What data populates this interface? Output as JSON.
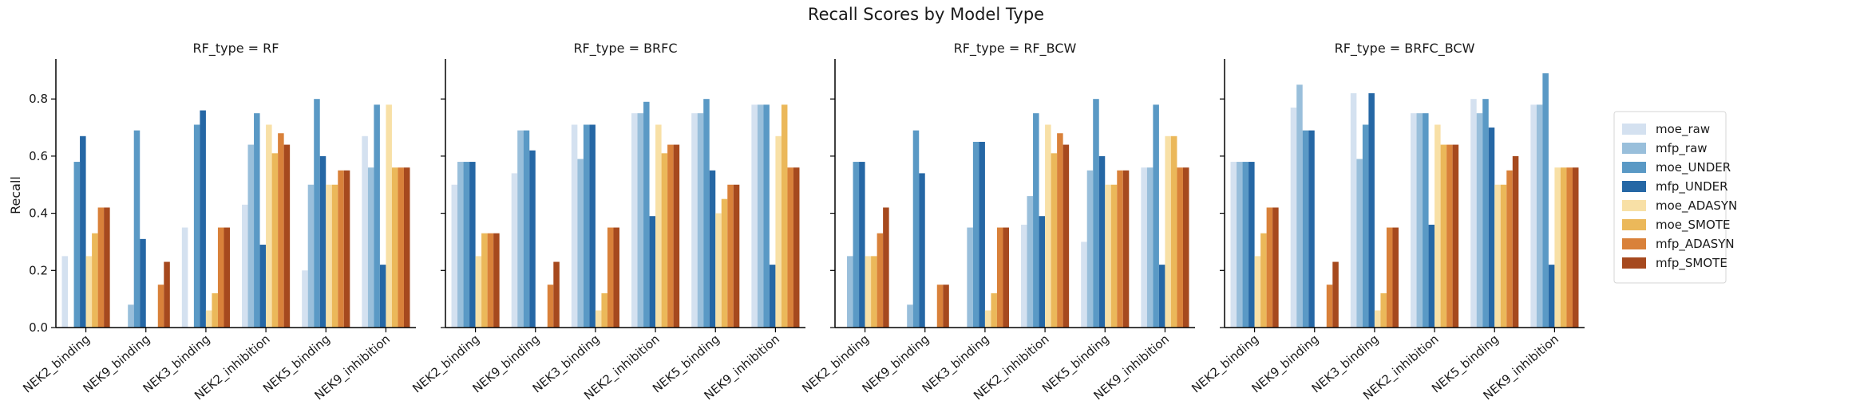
{
  "figure": {
    "title": "Recall Scores by Model Type"
  },
  "legend": {
    "placement": "right",
    "entries": [
      {
        "name": "moe_raw",
        "color": "#d4e1f0"
      },
      {
        "name": "mfp_raw",
        "color": "#99bfdb"
      },
      {
        "name": "moe_UNDER",
        "color": "#5a99c5"
      },
      {
        "name": "mfp_UNDER",
        "color": "#2567a5"
      },
      {
        "name": "moe_ADASYN",
        "color": "#f8e0a6"
      },
      {
        "name": "moe_SMOTE",
        "color": "#ebb85a"
      },
      {
        "name": "mfp_ADASYN",
        "color": "#d9813a"
      },
      {
        "name": "mfp_SMOTE",
        "color": "#a6491e"
      }
    ]
  },
  "chart_data": {
    "type": "bar",
    "ylabel": "Recall",
    "ylim": [
      0,
      0.94
    ],
    "yticks": [
      "0.0",
      "0.2",
      "0.4",
      "0.6",
      "0.8"
    ],
    "categories": [
      "NEK2_binding",
      "NEK9_binding",
      "NEK3_binding",
      "NEK2_inhibition",
      "NEK5_binding",
      "NEK9_inhibition"
    ],
    "series_names": [
      "moe_raw",
      "mfp_raw",
      "moe_UNDER",
      "mfp_UNDER",
      "moe_ADASYN",
      "moe_SMOTE",
      "mfp_ADASYN",
      "mfp_SMOTE"
    ],
    "panels": [
      {
        "title": "RF_type = RF",
        "values": [
          [
            0.25,
            0.0,
            0.35,
            0.43,
            0.2,
            0.67
          ],
          [
            0.0,
            0.08,
            0.0,
            0.64,
            0.5,
            0.56
          ],
          [
            0.58,
            0.69,
            0.71,
            0.75,
            0.8,
            0.78
          ],
          [
            0.67,
            0.31,
            0.76,
            0.29,
            0.6,
            0.22
          ],
          [
            0.25,
            0.0,
            0.06,
            0.71,
            0.5,
            0.78
          ],
          [
            0.33,
            0.0,
            0.12,
            0.61,
            0.5,
            0.56
          ],
          [
            0.42,
            0.15,
            0.35,
            0.68,
            0.55,
            0.56
          ],
          [
            0.42,
            0.23,
            0.35,
            0.64,
            0.55,
            0.56
          ]
        ]
      },
      {
        "title": "RF_type = BRFC",
        "values": [
          [
            0.5,
            0.54,
            0.71,
            0.75,
            0.75,
            0.78
          ],
          [
            0.58,
            0.69,
            0.59,
            0.75,
            0.75,
            0.78
          ],
          [
            0.58,
            0.69,
            0.71,
            0.79,
            0.8,
            0.78
          ],
          [
            0.58,
            0.62,
            0.71,
            0.39,
            0.55,
            0.22
          ],
          [
            0.25,
            0.0,
            0.06,
            0.71,
            0.4,
            0.67
          ],
          [
            0.33,
            0.0,
            0.12,
            0.61,
            0.45,
            0.78
          ],
          [
            0.33,
            0.15,
            0.35,
            0.64,
            0.5,
            0.56
          ],
          [
            0.33,
            0.23,
            0.35,
            0.64,
            0.5,
            0.56
          ]
        ]
      },
      {
        "title": "RF_type = RF_BCW",
        "values": [
          [
            0.0,
            0.0,
            0.0,
            0.36,
            0.3,
            0.56
          ],
          [
            0.25,
            0.08,
            0.35,
            0.46,
            0.55,
            0.56
          ],
          [
            0.58,
            0.69,
            0.65,
            0.75,
            0.8,
            0.78
          ],
          [
            0.58,
            0.54,
            0.65,
            0.39,
            0.6,
            0.22
          ],
          [
            0.25,
            0.0,
            0.06,
            0.71,
            0.5,
            0.67
          ],
          [
            0.25,
            0.0,
            0.12,
            0.61,
            0.5,
            0.67
          ],
          [
            0.33,
            0.15,
            0.35,
            0.68,
            0.55,
            0.56
          ],
          [
            0.42,
            0.15,
            0.35,
            0.64,
            0.55,
            0.56
          ]
        ]
      },
      {
        "title": "RF_type = BRFC_BCW",
        "values": [
          [
            0.58,
            0.77,
            0.82,
            0.75,
            0.8,
            0.78
          ],
          [
            0.58,
            0.85,
            0.59,
            0.75,
            0.75,
            0.78
          ],
          [
            0.58,
            0.69,
            0.71,
            0.75,
            0.8,
            0.89
          ],
          [
            0.58,
            0.69,
            0.82,
            0.36,
            0.7,
            0.22
          ],
          [
            0.25,
            0.0,
            0.06,
            0.71,
            0.5,
            0.56
          ],
          [
            0.33,
            0.0,
            0.12,
            0.64,
            0.5,
            0.56
          ],
          [
            0.42,
            0.15,
            0.35,
            0.64,
            0.55,
            0.56
          ],
          [
            0.42,
            0.23,
            0.35,
            0.64,
            0.6,
            0.56
          ]
        ]
      }
    ]
  }
}
